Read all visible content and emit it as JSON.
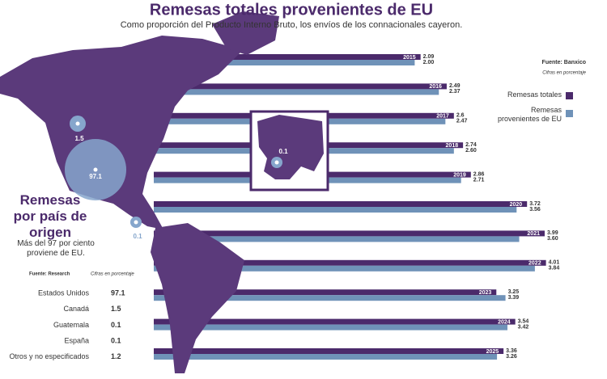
{
  "chart_data": [
    {
      "type": "bar",
      "orientation": "horizontal",
      "title": "Remesas totales provenientes de EU",
      "subtitle": "Como proporción del Producto Interno Bruto, los envíos de los connacionales cayeron.",
      "source": "Fuente: Banxico",
      "unit_note": "Cifras en porcentaje",
      "categories": [
        "2015",
        "2016",
        "2017",
        "2018",
        "2019",
        "2020",
        "2021",
        "2022",
        "2023",
        "2024",
        "2025"
      ],
      "series": [
        {
          "name": "Remesas totales",
          "color": "#4b2a6b",
          "values": [
            2.09,
            2.49,
            2.6,
            2.74,
            2.86,
            3.72,
            3.99,
            4.01,
            3.25,
            3.54,
            3.36
          ],
          "value_labels": [
            "2.09",
            "2.49",
            "2.6",
            "2.74",
            "2.86",
            "3.72",
            "3.99",
            "4.01",
            "3.25",
            "3.54",
            "3.36"
          ]
        },
        {
          "name": "Remesas provenientes de EU",
          "color": "#6f92b8",
          "values": [
            2,
            2.37,
            2.47,
            2.6,
            2.71,
            3.56,
            3.6,
            3.84,
            3.39,
            3.42,
            3.26
          ],
          "value_labels": [
            "2.00",
            "2.37",
            "2.47",
            "2.60",
            "2.71",
            "3.56",
            "3.60",
            "3.84",
            "3.39",
            "3.42",
            "3.26"
          ]
        }
      ]
    },
    {
      "type": "bubble",
      "title": "Remesas por país de origen",
      "subtitle": "Más del 97 por ciento proviene de EU.",
      "source": "Fuente: Research",
      "unit_note": "Cifras en porcentaje",
      "categories": [
        "Estados Unidos",
        "Canadá",
        "Guatemala",
        "España",
        "Otros y no especificados"
      ],
      "values": [
        97.1,
        1.5,
        0.1,
        0.1,
        1.2
      ],
      "color": "#86a6cc"
    }
  ]
}
